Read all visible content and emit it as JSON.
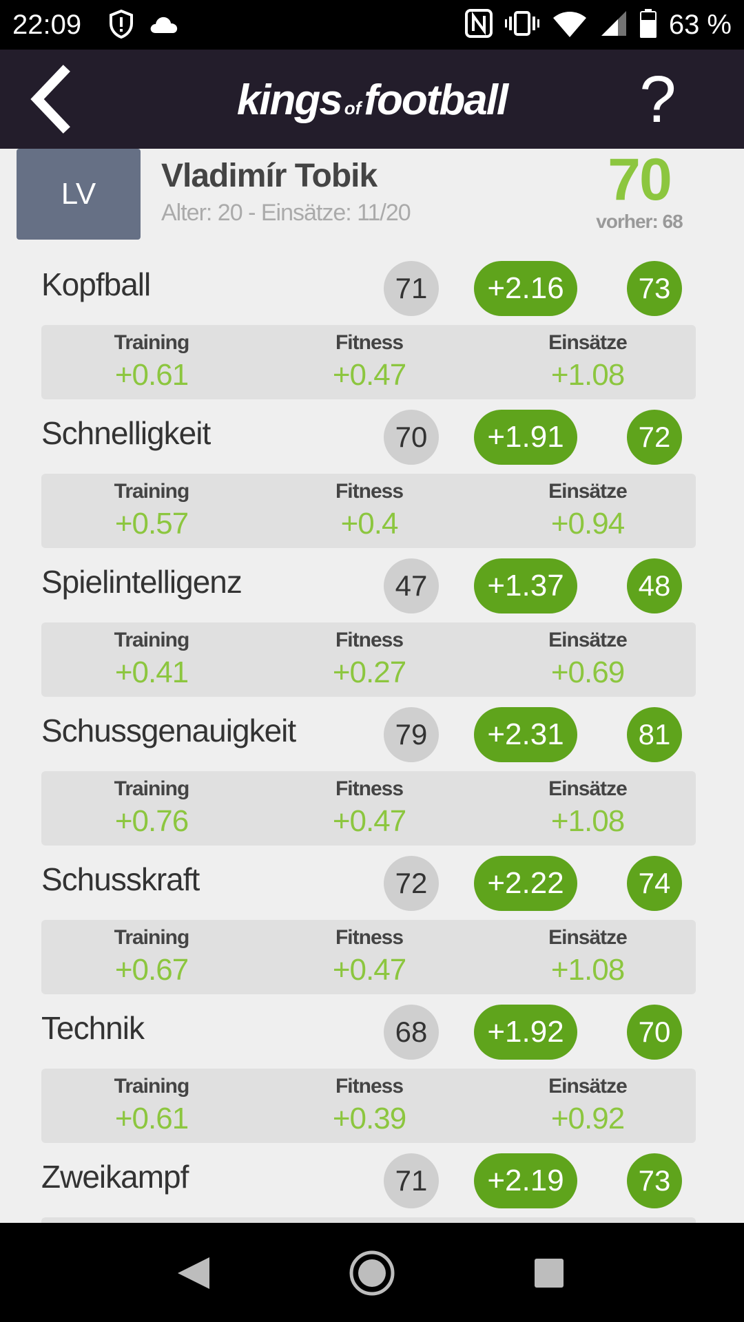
{
  "status_bar": {
    "time": "22:09",
    "battery": "63 %",
    "icons": [
      "shield-alert-icon",
      "cloud-icon",
      "nfc-icon",
      "vibrate-icon",
      "wifi-icon",
      "signal-icon",
      "battery-icon"
    ]
  },
  "header": {
    "logo_main": "kings",
    "logo_of": "of",
    "logo_end": "football",
    "help_label": "?"
  },
  "player": {
    "position": "LV",
    "name": "Vladimír Tobik",
    "meta": "Alter: 20 - Einsätze: 11/20",
    "overall": "70",
    "previous": "vorher: 68"
  },
  "breakdown_labels": {
    "training": "Training",
    "fitness": "Fitness",
    "matches": "Einsätze"
  },
  "attributes": [
    {
      "name": "Kopfball",
      "old": "71",
      "delta": "+2.16",
      "new": "73",
      "training": "+0.61",
      "fitness": "+0.47",
      "matches": "+1.08"
    },
    {
      "name": "Schnelligkeit",
      "old": "70",
      "delta": "+1.91",
      "new": "72",
      "training": "+0.57",
      "fitness": "+0.4",
      "matches": "+0.94"
    },
    {
      "name": "Spielintelligenz",
      "old": "47",
      "delta": "+1.37",
      "new": "48",
      "training": "+0.41",
      "fitness": "+0.27",
      "matches": "+0.69"
    },
    {
      "name": "Schussgenauigkeit",
      "old": "79",
      "delta": "+2.31",
      "new": "81",
      "training": "+0.76",
      "fitness": "+0.47",
      "matches": "+1.08"
    },
    {
      "name": "Schusskraft",
      "old": "72",
      "delta": "+2.22",
      "new": "74",
      "training": "+0.67",
      "fitness": "+0.47",
      "matches": "+1.08"
    },
    {
      "name": "Technik",
      "old": "68",
      "delta": "+1.92",
      "new": "70",
      "training": "+0.61",
      "fitness": "+0.39",
      "matches": "+0.92"
    },
    {
      "name": "Zweikampf",
      "old": "71",
      "delta": "+2.19",
      "new": "73",
      "training": "",
      "fitness": "",
      "matches": ""
    }
  ],
  "colors": {
    "header_bg": "#231d2b",
    "accent_green": "#5fa41c",
    "light_green": "#8cc63f",
    "position_badge": "#667085"
  }
}
